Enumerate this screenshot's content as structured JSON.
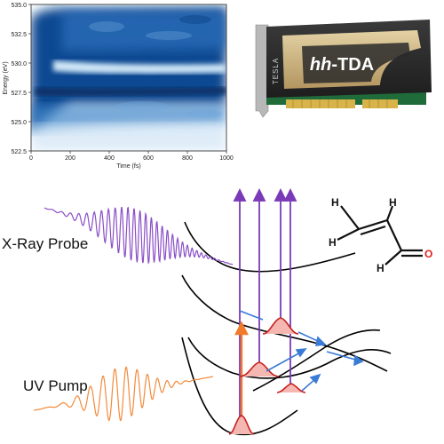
{
  "heatmap": {
    "ylabel": "Energy (eV)",
    "xlabel": "Time (fs)",
    "y_ticks": [
      "535.0",
      "532.5",
      "530.0",
      "527.5",
      "525.0",
      "522.5"
    ],
    "x_ticks": [
      "0",
      "200",
      "400",
      "600",
      "800",
      "1000"
    ],
    "colors": {
      "dark": "#0b3d80",
      "mid": "#2f77c0",
      "light": "#8ec0e8",
      "pale": "#e9f3fb"
    }
  },
  "gpu": {
    "brand": "TESLA",
    "product_prefix": "hh",
    "product_suffix": "-TDA",
    "colors": {
      "shroud": "#2b2b2b",
      "gold": "#c9b27f",
      "pcb": "#1f6b3a",
      "contacts": "#d8b34a"
    }
  },
  "labels": {
    "xray_probe": "X-Ray Probe",
    "uv_pump": "UV Pump"
  },
  "molecule": {
    "atoms": [
      "H",
      "H",
      "H",
      "H",
      "O"
    ],
    "oxygen_color": "#e0201b"
  },
  "colors": {
    "probe_wave": "#8a4fc7",
    "pump_wave": "#f28a3c",
    "probe_arrow": "#7a3ab8",
    "pump_arrow": "#f07b2a",
    "wavepacket_fill": "#f4b7b2",
    "wavepacket_edge": "#c9211e",
    "flow_arrow": "#3a7bd5",
    "curve": "#000000"
  }
}
